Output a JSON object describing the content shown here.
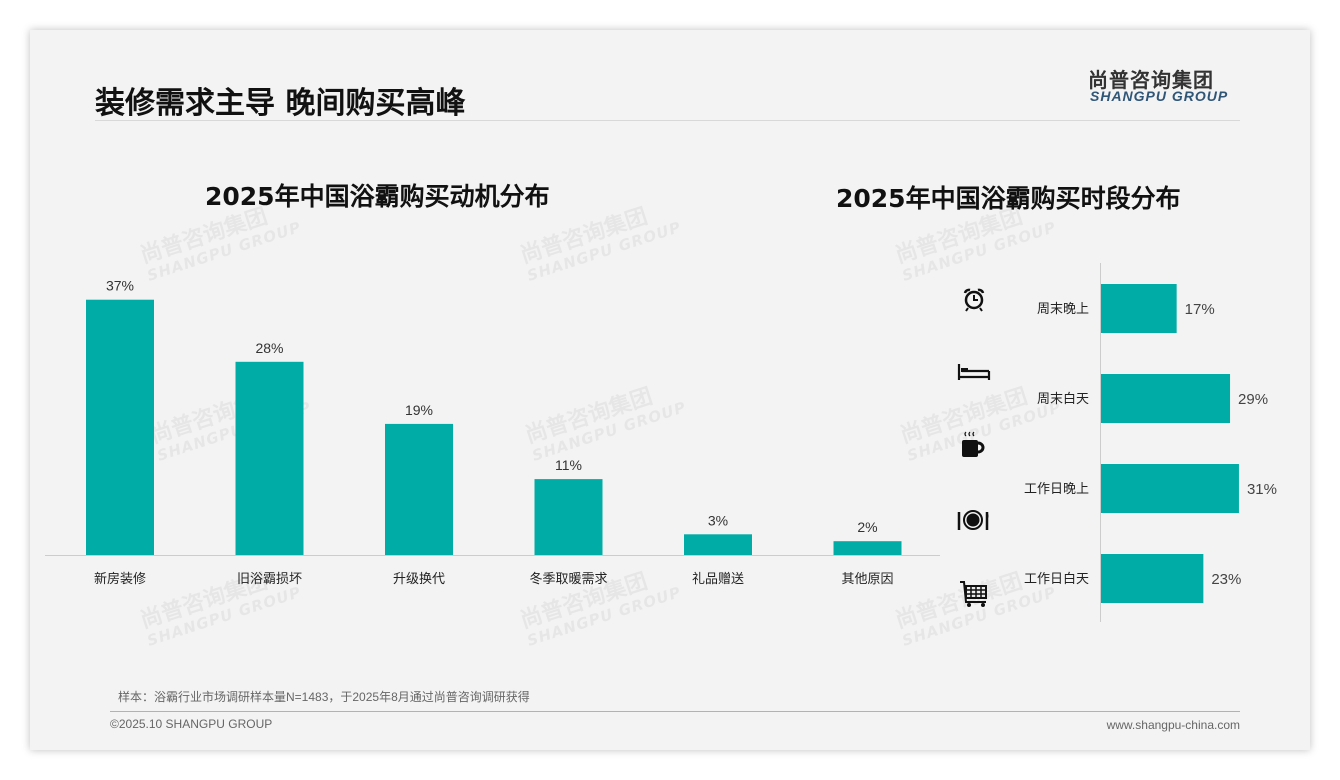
{
  "header": {
    "title": "装修需求主导 晚间购买高峰",
    "logo_cn": "尚普咨询集团",
    "logo_en": "SHANGPU GROUP"
  },
  "watermark": {
    "cn": "尚普咨询集团",
    "en": "SHANGPU GROUP"
  },
  "chart_data": [
    {
      "type": "bar",
      "title": "2025年中国浴霸购买动机分布",
      "categories": [
        "新房装修",
        "旧浴霸损坏",
        "升级换代",
        "冬季取暖需求",
        "礼品赠送",
        "其他原因"
      ],
      "values": [
        37,
        28,
        19,
        11,
        3,
        2
      ],
      "labels": [
        "37%",
        "28%",
        "19%",
        "11%",
        "3%",
        "2%"
      ],
      "unit": "%",
      "color": "#00ada6"
    },
    {
      "type": "bar",
      "orientation": "horizontal",
      "title": "2025年中国浴霸购买时段分布",
      "categories": [
        "周末晚上",
        "周末白天",
        "工作日晚上",
        "工作日白天"
      ],
      "values": [
        17,
        29,
        31,
        23
      ],
      "labels": [
        "17%",
        "29%",
        "31%",
        "23%"
      ],
      "unit": "%",
      "color": "#00ada6",
      "icons": [
        "alarm-clock-icon",
        "bed-icon",
        "coffee-mug-icon",
        "dinner-plate-icon",
        "shopping-cart-icon"
      ]
    }
  ],
  "footer": {
    "note": "样本：浴霸行业市场调研样本量N=1483，于2025年8月通过尚普咨询调研获得",
    "copyright": "©2025.10 SHANGPU GROUP",
    "website": "www.shangpu-china.com"
  }
}
